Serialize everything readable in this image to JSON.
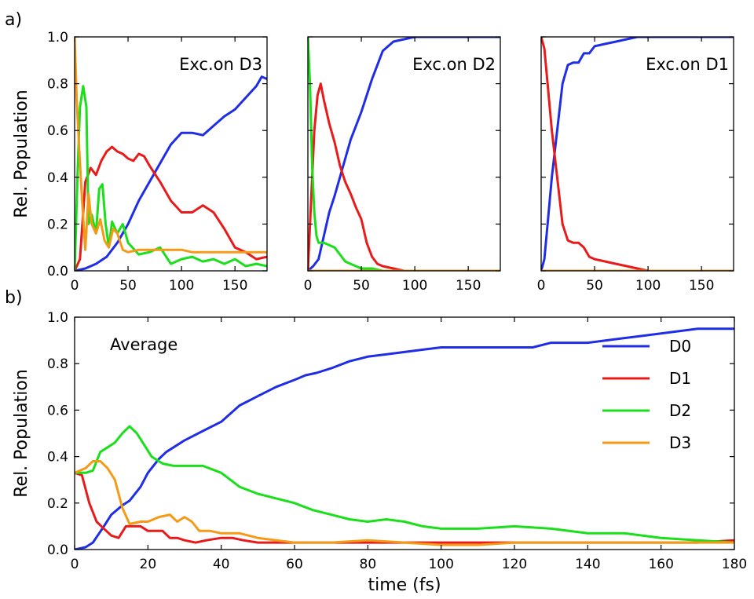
{
  "panel_labels": {
    "a": "a)",
    "b": "b)"
  },
  "colors": {
    "D0": "#1f2ee6",
    "D1": "#e81a1a",
    "D2": "#1adf1a",
    "D3": "#f59a16"
  },
  "chart_data": [
    {
      "type": "line",
      "panel": "a",
      "annotation": "Exc.on D3",
      "annotation_color": "#f59a16",
      "ylabel": "Rel. Population",
      "xlabel": "",
      "xlim": [
        0,
        180
      ],
      "ylim": [
        0,
        1
      ],
      "xticks": [
        0,
        50,
        100,
        150
      ],
      "yticks": [
        0.0,
        0.2,
        0.4,
        0.6,
        0.8,
        1.0
      ],
      "grid": false,
      "series": [
        {
          "key": "D0",
          "x": [
            0,
            10,
            20,
            30,
            40,
            50,
            60,
            70,
            80,
            90,
            100,
            110,
            120,
            130,
            140,
            150,
            160,
            170,
            175,
            180
          ],
          "values": [
            0.0,
            0.01,
            0.03,
            0.06,
            0.12,
            0.2,
            0.3,
            0.38,
            0.46,
            0.54,
            0.59,
            0.59,
            0.58,
            0.62,
            0.66,
            0.69,
            0.74,
            0.79,
            0.83,
            0.82
          ]
        },
        {
          "key": "D1",
          "x": [
            0,
            5,
            10,
            15,
            20,
            25,
            30,
            35,
            40,
            45,
            50,
            55,
            60,
            65,
            70,
            80,
            90,
            100,
            110,
            120,
            130,
            140,
            150,
            160,
            170,
            180
          ],
          "values": [
            0.0,
            0.05,
            0.38,
            0.44,
            0.41,
            0.47,
            0.51,
            0.53,
            0.51,
            0.5,
            0.48,
            0.47,
            0.5,
            0.49,
            0.45,
            0.38,
            0.3,
            0.25,
            0.25,
            0.28,
            0.25,
            0.18,
            0.1,
            0.08,
            0.05,
            0.06
          ]
        },
        {
          "key": "D2",
          "x": [
            0,
            3,
            5,
            8,
            11,
            13,
            16,
            20,
            23,
            26,
            29,
            32,
            35,
            40,
            45,
            50,
            60,
            70,
            80,
            90,
            100,
            110,
            120,
            130,
            140,
            150,
            160,
            170,
            180
          ],
          "values": [
            0.0,
            0.45,
            0.7,
            0.79,
            0.7,
            0.2,
            0.24,
            0.16,
            0.35,
            0.37,
            0.2,
            0.1,
            0.21,
            0.16,
            0.2,
            0.12,
            0.07,
            0.08,
            0.1,
            0.03,
            0.05,
            0.06,
            0.04,
            0.05,
            0.03,
            0.05,
            0.02,
            0.03,
            0.02
          ]
        },
        {
          "key": "D3",
          "x": [
            0,
            2,
            4,
            7,
            10,
            13,
            16,
            20,
            24,
            28,
            32,
            36,
            40,
            45,
            50,
            60,
            70,
            80,
            90,
            100,
            110,
            120,
            130,
            140,
            150,
            160,
            170,
            180
          ],
          "values": [
            1.0,
            0.73,
            0.55,
            0.3,
            0.09,
            0.33,
            0.2,
            0.16,
            0.22,
            0.13,
            0.1,
            0.18,
            0.16,
            0.09,
            0.08,
            0.09,
            0.09,
            0.09,
            0.09,
            0.09,
            0.08,
            0.08,
            0.08,
            0.08,
            0.08,
            0.08,
            0.08,
            0.08
          ]
        }
      ]
    },
    {
      "type": "line",
      "panel": "a",
      "annotation": "Exc.on D2",
      "annotation_color": "#1adf1a",
      "ylabel": "",
      "xlabel": "",
      "xlim": [
        0,
        180
      ],
      "ylim": [
        0,
        1
      ],
      "xticks": [
        0,
        50,
        100,
        150
      ],
      "yticks": [],
      "grid": false,
      "series": [
        {
          "key": "D0",
          "x": [
            0,
            5,
            10,
            15,
            20,
            25,
            30,
            35,
            40,
            45,
            50,
            55,
            60,
            65,
            70,
            80,
            90,
            100,
            120,
            150,
            180
          ],
          "values": [
            0.0,
            0.02,
            0.05,
            0.15,
            0.25,
            0.32,
            0.4,
            0.48,
            0.56,
            0.62,
            0.68,
            0.75,
            0.82,
            0.88,
            0.94,
            0.98,
            0.99,
            1.0,
            1.0,
            1.0,
            1.0
          ]
        },
        {
          "key": "D1",
          "x": [
            0,
            3,
            6,
            9,
            12,
            15,
            20,
            25,
            30,
            35,
            40,
            45,
            50,
            55,
            60,
            65,
            70,
            80,
            90,
            100,
            180
          ],
          "values": [
            0.0,
            0.3,
            0.6,
            0.75,
            0.8,
            0.73,
            0.63,
            0.55,
            0.45,
            0.38,
            0.33,
            0.27,
            0.22,
            0.12,
            0.06,
            0.03,
            0.02,
            0.01,
            0.0,
            0.0,
            0.0
          ]
        },
        {
          "key": "D2",
          "x": [
            0,
            2,
            4,
            6,
            8,
            10,
            15,
            20,
            25,
            30,
            35,
            40,
            50,
            60,
            70,
            80,
            180
          ],
          "values": [
            1.0,
            0.8,
            0.45,
            0.25,
            0.15,
            0.12,
            0.12,
            0.11,
            0.1,
            0.07,
            0.04,
            0.03,
            0.01,
            0.01,
            0.0,
            0.0,
            0.0
          ]
        },
        {
          "key": "D3",
          "x": [
            0,
            180
          ],
          "values": [
            0.0,
            0.0
          ]
        }
      ]
    },
    {
      "type": "line",
      "panel": "a",
      "annotation": "Exc.on D1",
      "annotation_color": "#1f70b8",
      "ylabel": "",
      "xlabel": "",
      "xlim": [
        0,
        180
      ],
      "ylim": [
        0,
        1
      ],
      "xticks": [
        0,
        50,
        100,
        150
      ],
      "yticks": [],
      "grid": false,
      "series": [
        {
          "key": "D0",
          "x": [
            0,
            3,
            6,
            10,
            15,
            20,
            25,
            30,
            35,
            40,
            45,
            50,
            60,
            70,
            80,
            90,
            100,
            180
          ],
          "values": [
            0.0,
            0.05,
            0.2,
            0.4,
            0.6,
            0.8,
            0.88,
            0.89,
            0.89,
            0.93,
            0.93,
            0.96,
            0.97,
            0.98,
            0.99,
            1.0,
            1.0,
            1.0
          ]
        },
        {
          "key": "D1",
          "x": [
            0,
            3,
            6,
            10,
            15,
            20,
            25,
            30,
            35,
            40,
            45,
            50,
            60,
            70,
            80,
            90,
            100,
            180
          ],
          "values": [
            1.0,
            0.95,
            0.8,
            0.6,
            0.4,
            0.2,
            0.13,
            0.12,
            0.12,
            0.1,
            0.06,
            0.05,
            0.04,
            0.03,
            0.02,
            0.01,
            0.0,
            0.0
          ]
        },
        {
          "key": "D2",
          "x": [
            0,
            180
          ],
          "values": [
            0.0,
            0.0
          ]
        },
        {
          "key": "D3",
          "x": [
            0,
            180
          ],
          "values": [
            0.0,
            0.0
          ]
        }
      ]
    },
    {
      "type": "line",
      "panel": "b",
      "annotation": "Average",
      "annotation_color": "#000000",
      "ylabel": "Rel. Population",
      "xlabel": "time (fs)",
      "xlim": [
        0,
        180
      ],
      "ylim": [
        0,
        1
      ],
      "xticks": [
        0,
        20,
        40,
        60,
        80,
        100,
        120,
        140,
        160,
        180
      ],
      "yticks": [
        0.0,
        0.2,
        0.4,
        0.6,
        0.8,
        1.0
      ],
      "grid": false,
      "legend": "right",
      "series": [
        {
          "name": "D0",
          "key": "D0",
          "x": [
            0,
            3,
            5,
            8,
            10,
            13,
            15,
            18,
            20,
            23,
            25,
            28,
            30,
            35,
            40,
            45,
            50,
            55,
            60,
            63,
            66,
            70,
            75,
            80,
            85,
            90,
            95,
            100,
            105,
            110,
            115,
            120,
            125,
            130,
            135,
            140,
            145,
            150,
            155,
            160,
            165,
            170,
            175,
            180
          ],
          "values": [
            0.0,
            0.01,
            0.03,
            0.1,
            0.15,
            0.19,
            0.21,
            0.27,
            0.33,
            0.39,
            0.42,
            0.45,
            0.47,
            0.51,
            0.55,
            0.62,
            0.66,
            0.7,
            0.73,
            0.75,
            0.76,
            0.78,
            0.81,
            0.83,
            0.84,
            0.85,
            0.86,
            0.87,
            0.87,
            0.87,
            0.87,
            0.87,
            0.87,
            0.89,
            0.89,
            0.89,
            0.9,
            0.91,
            0.92,
            0.93,
            0.94,
            0.95,
            0.95,
            0.95
          ]
        },
        {
          "name": "D1",
          "key": "D1",
          "x": [
            0,
            2,
            4,
            6,
            8,
            10,
            12,
            14,
            16,
            18,
            20,
            22,
            24,
            26,
            28,
            30,
            33,
            36,
            40,
            43,
            46,
            50,
            55,
            60,
            70,
            80,
            90,
            100,
            110,
            120,
            130,
            140,
            150,
            160,
            170,
            180
          ],
          "values": [
            0.33,
            0.32,
            0.2,
            0.12,
            0.09,
            0.06,
            0.05,
            0.1,
            0.1,
            0.1,
            0.08,
            0.08,
            0.08,
            0.05,
            0.05,
            0.04,
            0.03,
            0.04,
            0.05,
            0.05,
            0.04,
            0.03,
            0.03,
            0.03,
            0.03,
            0.03,
            0.03,
            0.03,
            0.03,
            0.03,
            0.03,
            0.03,
            0.03,
            0.03,
            0.03,
            0.04
          ]
        },
        {
          "name": "D2",
          "key": "D2",
          "x": [
            0,
            3,
            5,
            7,
            9,
            11,
            13,
            15,
            17,
            19,
            21,
            24,
            27,
            30,
            35,
            40,
            45,
            50,
            55,
            60,
            65,
            70,
            75,
            80,
            85,
            90,
            95,
            100,
            110,
            120,
            130,
            140,
            150,
            160,
            170,
            180
          ],
          "values": [
            0.33,
            0.33,
            0.34,
            0.42,
            0.44,
            0.46,
            0.5,
            0.53,
            0.5,
            0.45,
            0.4,
            0.37,
            0.36,
            0.36,
            0.36,
            0.33,
            0.27,
            0.24,
            0.22,
            0.2,
            0.17,
            0.15,
            0.13,
            0.12,
            0.13,
            0.12,
            0.1,
            0.09,
            0.09,
            0.1,
            0.09,
            0.07,
            0.07,
            0.05,
            0.04,
            0.03
          ]
        },
        {
          "name": "D3",
          "key": "D3",
          "x": [
            0,
            3,
            5,
            7,
            9,
            11,
            13,
            15,
            18,
            20,
            23,
            26,
            28,
            30,
            32,
            34,
            37,
            40,
            45,
            50,
            55,
            60,
            70,
            80,
            90,
            100,
            110,
            120,
            130,
            140,
            150,
            160,
            170,
            180
          ],
          "values": [
            0.33,
            0.35,
            0.38,
            0.38,
            0.35,
            0.3,
            0.18,
            0.11,
            0.12,
            0.12,
            0.14,
            0.15,
            0.12,
            0.14,
            0.12,
            0.08,
            0.08,
            0.07,
            0.07,
            0.05,
            0.04,
            0.03,
            0.03,
            0.04,
            0.03,
            0.02,
            0.02,
            0.03,
            0.03,
            0.03,
            0.03,
            0.03,
            0.03,
            0.03
          ]
        }
      ]
    }
  ]
}
